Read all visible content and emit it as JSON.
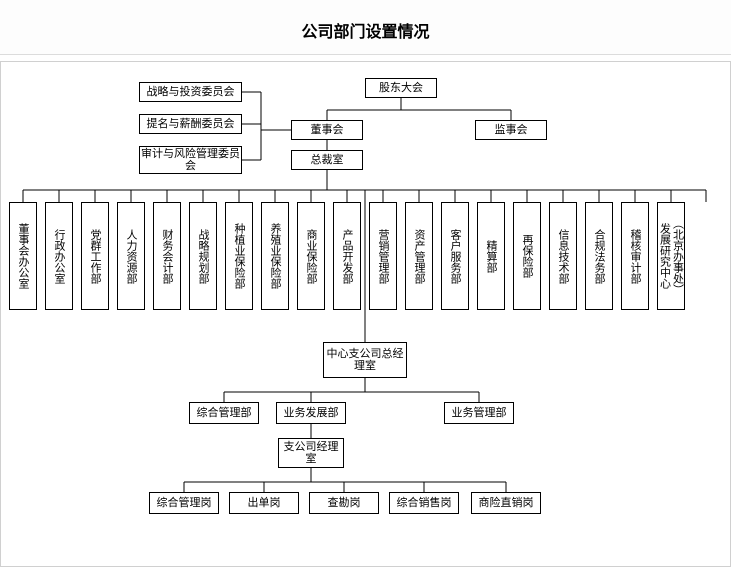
{
  "title": "公司部门设置情况",
  "top": {
    "shareholders": "股东大会",
    "board": "董事会",
    "supervisory": "监事会",
    "president": "总裁室",
    "committees": [
      "战略与投资委员会",
      "提名与薪酬委员会",
      "审计与风险管理委员会"
    ]
  },
  "departments": [
    "董事会办公室",
    "行政办公室",
    "党群工作部",
    "人力资源部",
    "财务会计部",
    "战略规划部",
    "种植业保险部",
    "养殖业保险部",
    "商业保险部",
    "产品开发部",
    "营销管理部",
    "资产管理部",
    "客户服务部",
    "精算部",
    "再保险部",
    "信息技术部",
    "合规法务部",
    "稽核审计部",
    "发展研究中心",
    "︵北京办事处︶"
  ],
  "branch": {
    "centerMgr": "中心支公司总经理室",
    "centerDepts": [
      "综合管理部",
      "业务发展部",
      "业务管理部"
    ],
    "subMgr": "支公司经理室",
    "posts": [
      "综合管理岗",
      "出单岗",
      "查勘岗",
      "综合销售岗",
      "商险直销岗"
    ]
  },
  "style": {
    "border_color": "#000000",
    "background": "#ffffff",
    "title_fontsize": 16,
    "node_fontsize": 11,
    "outer_border": "#d0d0d0",
    "divider": "#dcdcdc"
  }
}
